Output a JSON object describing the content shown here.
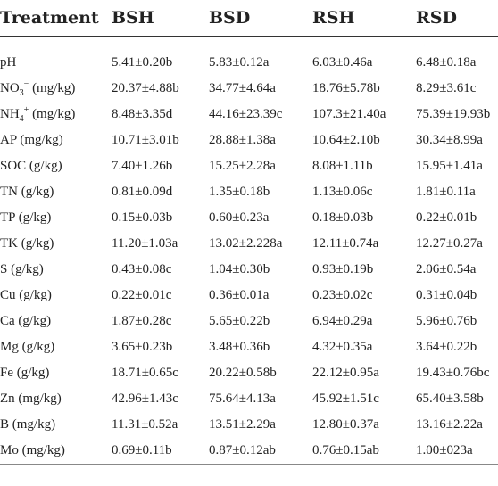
{
  "header": [
    "Treatment",
    "BSH",
    "BSD",
    "RSH",
    "RSD"
  ],
  "rows": [
    {
      "label": "pH",
      "label_sup": "",
      "label_unit": "",
      "values": [
        "5.41±0.20b",
        "5.83±0.12a",
        "6.03±0.46a",
        "6.48±0.18a"
      ]
    },
    {
      "label": "NO",
      "label_sub": "3",
      "label_sup": "−",
      "label_unit": " (mg/kg)",
      "values": [
        "20.37±4.88b",
        "34.77±4.64a",
        "18.76±5.78b",
        "8.29±3.61c"
      ]
    },
    {
      "label": "NH",
      "label_sub": "4",
      "label_sup": "+",
      "label_unit": " (mg/kg)",
      "values": [
        "8.48±3.35d",
        "44.16±23.39c",
        "107.3±21.40a",
        "75.39±19.93b"
      ]
    },
    {
      "label": "AP (mg/kg)",
      "label_sup": "",
      "label_unit": "",
      "values": [
        "10.71±3.01b",
        "28.88±1.38a",
        "10.64±2.10b",
        "30.34±8.99a"
      ]
    },
    {
      "label": "SOC (g/kg)",
      "label_sup": "",
      "label_unit": "",
      "values": [
        "7.40±1.26b",
        "15.25±2.28a",
        "8.08±1.11b",
        "15.95±1.41a"
      ]
    },
    {
      "label": "TN (g/kg)",
      "label_sup": "",
      "label_unit": "",
      "values": [
        "0.81±0.09d",
        "1.35±0.18b",
        "1.13±0.06c",
        "1.81±0.11a"
      ]
    },
    {
      "label": "TP (g/kg)",
      "label_sup": "",
      "label_unit": "",
      "values": [
        "0.15±0.03b",
        "0.60±0.23a",
        "0.18±0.03b",
        "0.22±0.01b"
      ]
    },
    {
      "label": "TK (g/kg)",
      "label_sup": "",
      "label_unit": "",
      "values": [
        "11.20±1.03a",
        "13.02±2.228a",
        "12.11±0.74a",
        "12.27±0.27a"
      ]
    },
    {
      "label": "S (g/kg)",
      "label_sup": "",
      "label_unit": "",
      "values": [
        "0.43±0.08c",
        "1.04±0.30b",
        "0.93±0.19b",
        "2.06±0.54a"
      ]
    },
    {
      "label": "Cu (g/kg)",
      "label_sup": "",
      "label_unit": "",
      "values": [
        "0.22±0.01c",
        "0.36±0.01a",
        "0.23±0.02c",
        "0.31±0.04b"
      ]
    },
    {
      "label": "Ca (g/kg)",
      "label_sup": "",
      "label_unit": "",
      "values": [
        "1.87±0.28c",
        "5.65±0.22b",
        "6.94±0.29a",
        "5.96±0.76b"
      ]
    },
    {
      "label": "Mg (g/kg)",
      "label_sup": "",
      "label_unit": "",
      "values": [
        "3.65±0.23b",
        "3.48±0.36b",
        "4.32±0.35a",
        "3.64±0.22b"
      ]
    },
    {
      "label": "Fe (g/kg)",
      "label_sup": "",
      "label_unit": "",
      "values": [
        "18.71±0.65c",
        "20.22±0.58b",
        "22.12±0.95a",
        "19.43±0.76bc"
      ]
    },
    {
      "label": "Zn (mg/kg)",
      "label_sup": "",
      "label_unit": "",
      "values": [
        "42.96±1.43c",
        "75.64±4.13a",
        "45.92±1.51c",
        "65.40±3.58b"
      ]
    },
    {
      "label": "B (mg/kg)",
      "label_sup": "",
      "label_unit": "",
      "values": [
        "11.31±0.52a",
        "13.51±2.29a",
        "12.80±0.37a",
        "13.16±2.22a"
      ]
    },
    {
      "label": "Mo (mg/kg)",
      "label_sup": "",
      "label_unit": "",
      "values": [
        "0.69±0.11b",
        "0.87±0.12ab",
        "0.76±0.15ab",
        "1.00±023a"
      ]
    }
  ]
}
